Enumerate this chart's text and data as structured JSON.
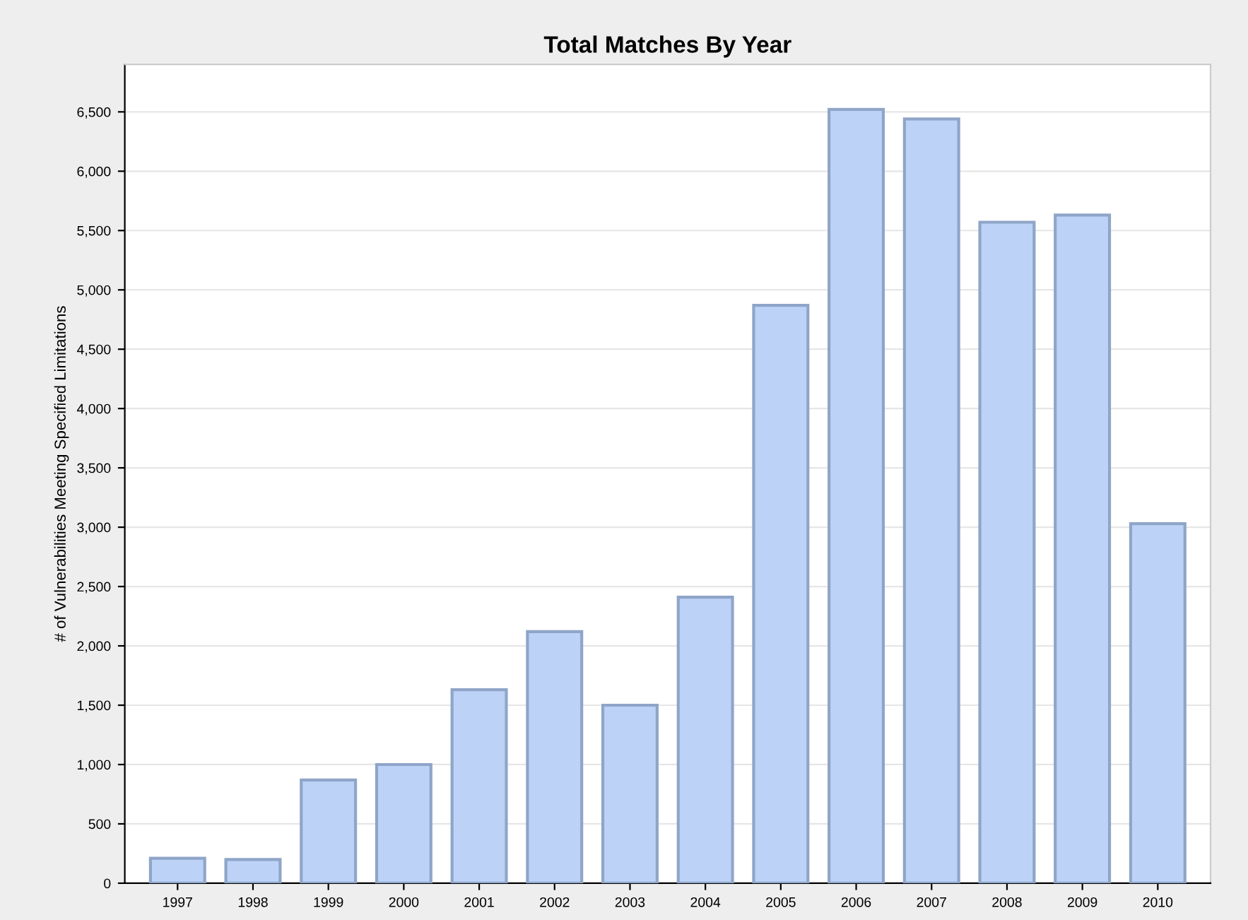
{
  "chart_data": {
    "type": "bar",
    "title": "Total Matches By Year",
    "ylabel": "# of Vulnerabilities Meeting Specified Limitations",
    "categories": [
      "1997",
      "1998",
      "1999",
      "2000",
      "2001",
      "2002",
      "2003",
      "2004",
      "2005",
      "2006",
      "2007",
      "2008",
      "2009",
      "2010"
    ],
    "values": [
      210,
      200,
      870,
      1000,
      1630,
      2120,
      1500,
      2410,
      4870,
      6520,
      6440,
      5570,
      5630,
      3030
    ],
    "color": "#bcd3f7",
    "ylim": [
      0,
      6900
    ],
    "yticks": [
      0,
      500,
      {
        "value": 1000,
        "label": "1,000"
      },
      {
        "value": 1500,
        "label": "1,500"
      },
      {
        "value": 2000,
        "label": "2,000"
      },
      {
        "value": 2500,
        "label": "2,500"
      },
      {
        "value": 3000,
        "label": "3,000"
      },
      {
        "value": 3500,
        "label": "3,500"
      },
      {
        "value": 4000,
        "label": "4,000"
      },
      {
        "value": 4500,
        "label": "4,500"
      },
      {
        "value": 5000,
        "label": "5,000"
      },
      {
        "value": 5500,
        "label": "5,500"
      },
      {
        "value": 6000,
        "label": "6,000"
      },
      {
        "value": 6500,
        "label": "6,500"
      }
    ],
    "grid": "y"
  }
}
